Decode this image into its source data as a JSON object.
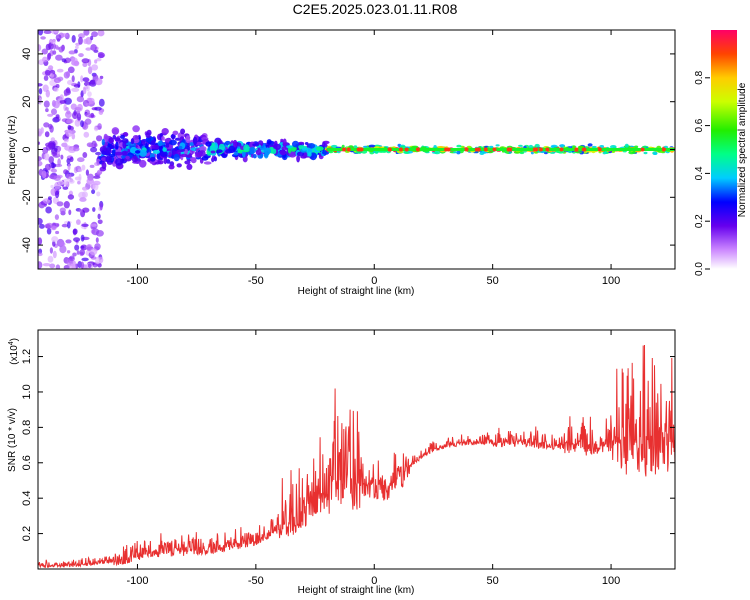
{
  "title": "C2E5.2025.023.01.11.R08",
  "chart_data": [
    {
      "type": "heatmap",
      "xlabel": "Height of straight line (km)",
      "ylabel": "Frequency (Hz)",
      "xlim": [
        -142,
        127
      ],
      "ylim": [
        -50,
        50
      ],
      "xticks": [
        -100,
        -50,
        0,
        50,
        100
      ],
      "yticks": [
        -40,
        -20,
        0,
        20,
        40
      ],
      "colorbar": {
        "label": "Normalized spectral amplitude",
        "ticks": [
          "0.0",
          "0.2",
          "0.4",
          "0.6",
          "0.8"
        ],
        "range": [
          0,
          1
        ]
      },
      "ridge": {
        "frequency": 0,
        "bands": [
          {
            "x_from": -142,
            "x_to": -115,
            "halfwidth": 50,
            "amplitude": 0.12
          },
          {
            "x_from": -115,
            "x_to": -70,
            "halfwidth": 10,
            "amplitude": 0.35
          },
          {
            "x_from": -70,
            "x_to": -20,
            "halfwidth": 5,
            "amplitude": 0.45
          },
          {
            "x_from": -20,
            "x_to": 127,
            "halfwidth": 2,
            "amplitude": 0.85
          }
        ]
      }
    },
    {
      "type": "line",
      "xlabel": "Height of straight line (km)",
      "ylabel": "SNR (10 * v/v)",
      "y_multiplier": "(x10",
      "y_multiplier_exp": "4",
      "y_multiplier_close": ")",
      "xlim": [
        -142,
        127
      ],
      "ylim": [
        0,
        1.35
      ],
      "xticks": [
        -100,
        -50,
        0,
        50,
        100
      ],
      "yticks": [
        "0.2",
        "0.4",
        "0.6",
        "0.8",
        "1.0",
        "1.2"
      ],
      "series": [
        {
          "color": "#e83030",
          "x": [
            -142,
            -130,
            -120,
            -110,
            -100,
            -90,
            -80,
            -70,
            -60,
            -50,
            -45,
            -40,
            -35,
            -30,
            -25,
            -20,
            -15,
            -10,
            -5,
            0,
            5,
            10,
            15,
            20,
            25,
            30,
            35,
            40,
            50,
            60,
            70,
            80,
            90,
            100,
            105,
            110,
            115,
            120,
            127
          ],
          "y": [
            0.02,
            0.02,
            0.03,
            0.05,
            0.08,
            0.1,
            0.11,
            0.12,
            0.14,
            0.17,
            0.2,
            0.24,
            0.28,
            0.33,
            0.4,
            0.46,
            0.52,
            0.5,
            0.48,
            0.47,
            0.45,
            0.5,
            0.58,
            0.64,
            0.68,
            0.7,
            0.71,
            0.72,
            0.72,
            0.72,
            0.71,
            0.7,
            0.7,
            0.7,
            0.72,
            0.73,
            0.7,
            0.7,
            0.72
          ]
        }
      ]
    }
  ]
}
